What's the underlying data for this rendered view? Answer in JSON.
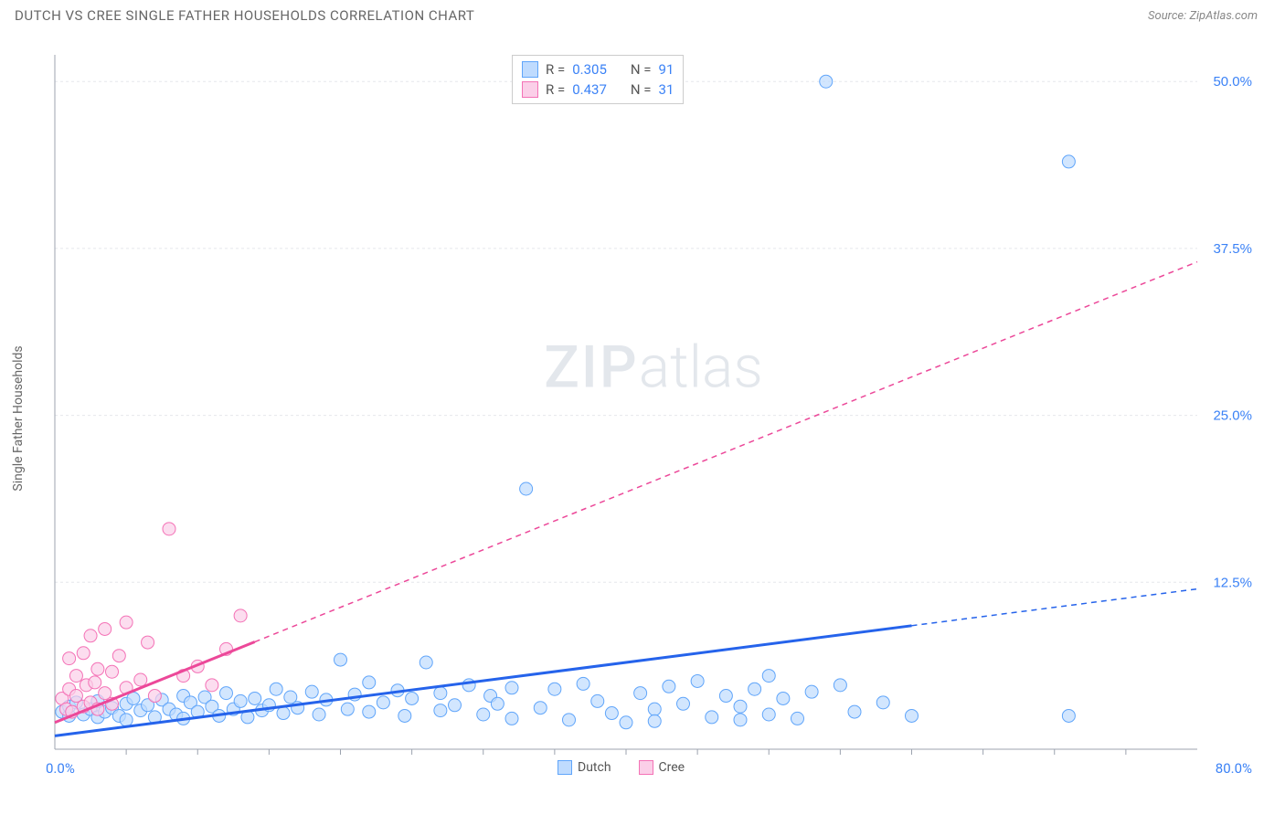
{
  "title": "DUTCH VS CREE SINGLE FATHER HOUSEHOLDS CORRELATION CHART",
  "source_label": "Source:",
  "source_value": "ZipAtlas.com",
  "watermark_zip": "ZIP",
  "watermark_atlas": "atlas",
  "ylabel": "Single Father Households",
  "chart": {
    "type": "scatter",
    "xlim": [
      0,
      80
    ],
    "ylim": [
      0,
      52
    ],
    "x_start_label": "0.0%",
    "x_end_label": "80.0%",
    "y_ticks": [
      {
        "v": 12.5,
        "label": "12.5%"
      },
      {
        "v": 25.0,
        "label": "25.0%"
      },
      {
        "v": 37.5,
        "label": "37.5%"
      },
      {
        "v": 50.0,
        "label": "50.0%"
      }
    ],
    "x_minor_ticks": [
      5,
      10,
      15,
      20,
      25,
      30,
      35,
      40,
      45,
      50,
      55,
      60,
      65,
      70,
      75
    ],
    "grid_color": "#e5e7eb",
    "background": "#ffffff",
    "marker_radius": 7,
    "marker_stroke_width": 1,
    "trend_line_width": 3,
    "trend_dashed_pattern": "6,5",
    "series": {
      "dutch": {
        "label": "Dutch",
        "fill": "#bfdbfe",
        "stroke": "#60a5fa",
        "line_color": "#2563eb",
        "R": "0.305",
        "N": "91",
        "trend": {
          "x1": 0,
          "y1": 1.0,
          "x2": 80,
          "y2": 12.0,
          "solid_until_x": 60
        },
        "points": [
          [
            0.5,
            2.8
          ],
          [
            1,
            2.5
          ],
          [
            1,
            3.2
          ],
          [
            1.5,
            3.5
          ],
          [
            2,
            2.6
          ],
          [
            2.5,
            3.0
          ],
          [
            3,
            2.4
          ],
          [
            3,
            3.6
          ],
          [
            3.5,
            2.8
          ],
          [
            4,
            3.1
          ],
          [
            4.5,
            2.5
          ],
          [
            5,
            3.4
          ],
          [
            5,
            2.2
          ],
          [
            5.5,
            3.8
          ],
          [
            6,
            2.9
          ],
          [
            6.5,
            3.3
          ],
          [
            7,
            2.4
          ],
          [
            7.5,
            3.7
          ],
          [
            8,
            3.0
          ],
          [
            8.5,
            2.6
          ],
          [
            9,
            4.0
          ],
          [
            9,
            2.3
          ],
          [
            9.5,
            3.5
          ],
          [
            10,
            2.8
          ],
          [
            10.5,
            3.9
          ],
          [
            11,
            3.2
          ],
          [
            11.5,
            2.5
          ],
          [
            12,
            4.2
          ],
          [
            12.5,
            3.0
          ],
          [
            13,
            3.6
          ],
          [
            13.5,
            2.4
          ],
          [
            14,
            3.8
          ],
          [
            14.5,
            2.9
          ],
          [
            15,
            3.3
          ],
          [
            15.5,
            4.5
          ],
          [
            16,
            2.7
          ],
          [
            16.5,
            3.9
          ],
          [
            17,
            3.1
          ],
          [
            18,
            4.3
          ],
          [
            18.5,
            2.6
          ],
          [
            19,
            3.7
          ],
          [
            20,
            6.7
          ],
          [
            20.5,
            3.0
          ],
          [
            21,
            4.1
          ],
          [
            22,
            2.8
          ],
          [
            22,
            5.0
          ],
          [
            23,
            3.5
          ],
          [
            24,
            4.4
          ],
          [
            24.5,
            2.5
          ],
          [
            25,
            3.8
          ],
          [
            26,
            6.5
          ],
          [
            27,
            2.9
          ],
          [
            27,
            4.2
          ],
          [
            28,
            3.3
          ],
          [
            29,
            4.8
          ],
          [
            30,
            2.6
          ],
          [
            30.5,
            4.0
          ],
          [
            31,
            3.4
          ],
          [
            32,
            2.3
          ],
          [
            32,
            4.6
          ],
          [
            33,
            19.5
          ],
          [
            34,
            3.1
          ],
          [
            35,
            4.5
          ],
          [
            36,
            2.2
          ],
          [
            37,
            4.9
          ],
          [
            38,
            3.6
          ],
          [
            39,
            2.7
          ],
          [
            40,
            2.0
          ],
          [
            41,
            4.2
          ],
          [
            42,
            3.0
          ],
          [
            42,
            2.1
          ],
          [
            43,
            4.7
          ],
          [
            44,
            3.4
          ],
          [
            45,
            5.1
          ],
          [
            46,
            2.4
          ],
          [
            47,
            4.0
          ],
          [
            48,
            3.2
          ],
          [
            48,
            2.2
          ],
          [
            49,
            4.5
          ],
          [
            50,
            5.5
          ],
          [
            50,
            2.6
          ],
          [
            51,
            3.8
          ],
          [
            52,
            2.3
          ],
          [
            53,
            4.3
          ],
          [
            54,
            50.0
          ],
          [
            55,
            4.8
          ],
          [
            56,
            2.8
          ],
          [
            58,
            3.5
          ],
          [
            60,
            2.5
          ],
          [
            71,
            44.0
          ],
          [
            71,
            2.5
          ]
        ]
      },
      "cree": {
        "label": "Cree",
        "fill": "#fbcfe8",
        "stroke": "#f472b6",
        "line_color": "#ec4899",
        "R": "0.437",
        "N": "31",
        "trend": {
          "x1": 0,
          "y1": 2.0,
          "x2": 80,
          "y2": 36.5,
          "solid_until_x": 14
        },
        "points": [
          [
            0.5,
            3.8
          ],
          [
            0.8,
            3.0
          ],
          [
            1,
            4.5
          ],
          [
            1,
            6.8
          ],
          [
            1.2,
            2.8
          ],
          [
            1.5,
            4.0
          ],
          [
            1.5,
            5.5
          ],
          [
            2,
            3.2
          ],
          [
            2,
            7.2
          ],
          [
            2.2,
            4.8
          ],
          [
            2.5,
            3.5
          ],
          [
            2.5,
            8.5
          ],
          [
            2.8,
            5.0
          ],
          [
            3,
            3.0
          ],
          [
            3,
            6.0
          ],
          [
            3.5,
            9.0
          ],
          [
            3.5,
            4.2
          ],
          [
            4,
            5.8
          ],
          [
            4,
            3.4
          ],
          [
            4.5,
            7.0
          ],
          [
            5,
            4.6
          ],
          [
            5,
            9.5
          ],
          [
            6,
            5.2
          ],
          [
            6.5,
            8.0
          ],
          [
            7,
            4.0
          ],
          [
            8,
            16.5
          ],
          [
            9,
            5.5
          ],
          [
            10,
            6.2
          ],
          [
            11,
            4.8
          ],
          [
            12,
            7.5
          ],
          [
            13,
            10.0
          ]
        ]
      }
    }
  },
  "legend_top": {
    "R_label": "R =",
    "N_label": "N ="
  },
  "legend_bottom": {
    "dutch": "Dutch",
    "cree": "Cree"
  }
}
